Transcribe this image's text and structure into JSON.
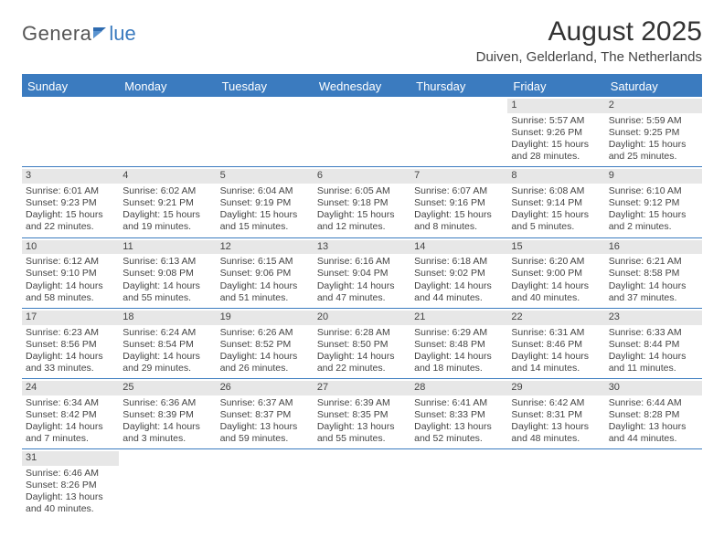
{
  "logo": {
    "part1": "Genera",
    "part2": "lue"
  },
  "title": "August 2025",
  "subtitle": "Duiven, Gelderland, The Netherlands",
  "colors": {
    "brand": "#3b7bbf",
    "header_bg": "#3b7bbf",
    "header_text": "#ffffff",
    "daynum_bg": "#e7e7e7",
    "row_border": "#3b7bbf",
    "text": "#444444",
    "background": "#ffffff"
  },
  "typography": {
    "title_fontsize": 30,
    "subtitle_fontsize": 15,
    "dow_fontsize": 13,
    "cell_fontsize": 10.5,
    "logo_fontsize": 22
  },
  "days_of_week": [
    "Sunday",
    "Monday",
    "Tuesday",
    "Wednesday",
    "Thursday",
    "Friday",
    "Saturday"
  ],
  "weeks": [
    [
      {
        "n": "",
        "lines": [
          "",
          "",
          "",
          ""
        ]
      },
      {
        "n": "",
        "lines": [
          "",
          "",
          "",
          ""
        ]
      },
      {
        "n": "",
        "lines": [
          "",
          "",
          "",
          ""
        ]
      },
      {
        "n": "",
        "lines": [
          "",
          "",
          "",
          ""
        ]
      },
      {
        "n": "",
        "lines": [
          "",
          "",
          "",
          ""
        ]
      },
      {
        "n": "1",
        "lines": [
          "Sunrise: 5:57 AM",
          "Sunset: 9:26 PM",
          "Daylight: 15 hours",
          "and 28 minutes."
        ]
      },
      {
        "n": "2",
        "lines": [
          "Sunrise: 5:59 AM",
          "Sunset: 9:25 PM",
          "Daylight: 15 hours",
          "and 25 minutes."
        ]
      }
    ],
    [
      {
        "n": "3",
        "lines": [
          "Sunrise: 6:01 AM",
          "Sunset: 9:23 PM",
          "Daylight: 15 hours",
          "and 22 minutes."
        ]
      },
      {
        "n": "4",
        "lines": [
          "Sunrise: 6:02 AM",
          "Sunset: 9:21 PM",
          "Daylight: 15 hours",
          "and 19 minutes."
        ]
      },
      {
        "n": "5",
        "lines": [
          "Sunrise: 6:04 AM",
          "Sunset: 9:19 PM",
          "Daylight: 15 hours",
          "and 15 minutes."
        ]
      },
      {
        "n": "6",
        "lines": [
          "Sunrise: 6:05 AM",
          "Sunset: 9:18 PM",
          "Daylight: 15 hours",
          "and 12 minutes."
        ]
      },
      {
        "n": "7",
        "lines": [
          "Sunrise: 6:07 AM",
          "Sunset: 9:16 PM",
          "Daylight: 15 hours",
          "and 8 minutes."
        ]
      },
      {
        "n": "8",
        "lines": [
          "Sunrise: 6:08 AM",
          "Sunset: 9:14 PM",
          "Daylight: 15 hours",
          "and 5 minutes."
        ]
      },
      {
        "n": "9",
        "lines": [
          "Sunrise: 6:10 AM",
          "Sunset: 9:12 PM",
          "Daylight: 15 hours",
          "and 2 minutes."
        ]
      }
    ],
    [
      {
        "n": "10",
        "lines": [
          "Sunrise: 6:12 AM",
          "Sunset: 9:10 PM",
          "Daylight: 14 hours",
          "and 58 minutes."
        ]
      },
      {
        "n": "11",
        "lines": [
          "Sunrise: 6:13 AM",
          "Sunset: 9:08 PM",
          "Daylight: 14 hours",
          "and 55 minutes."
        ]
      },
      {
        "n": "12",
        "lines": [
          "Sunrise: 6:15 AM",
          "Sunset: 9:06 PM",
          "Daylight: 14 hours",
          "and 51 minutes."
        ]
      },
      {
        "n": "13",
        "lines": [
          "Sunrise: 6:16 AM",
          "Sunset: 9:04 PM",
          "Daylight: 14 hours",
          "and 47 minutes."
        ]
      },
      {
        "n": "14",
        "lines": [
          "Sunrise: 6:18 AM",
          "Sunset: 9:02 PM",
          "Daylight: 14 hours",
          "and 44 minutes."
        ]
      },
      {
        "n": "15",
        "lines": [
          "Sunrise: 6:20 AM",
          "Sunset: 9:00 PM",
          "Daylight: 14 hours",
          "and 40 minutes."
        ]
      },
      {
        "n": "16",
        "lines": [
          "Sunrise: 6:21 AM",
          "Sunset: 8:58 PM",
          "Daylight: 14 hours",
          "and 37 minutes."
        ]
      }
    ],
    [
      {
        "n": "17",
        "lines": [
          "Sunrise: 6:23 AM",
          "Sunset: 8:56 PM",
          "Daylight: 14 hours",
          "and 33 minutes."
        ]
      },
      {
        "n": "18",
        "lines": [
          "Sunrise: 6:24 AM",
          "Sunset: 8:54 PM",
          "Daylight: 14 hours",
          "and 29 minutes."
        ]
      },
      {
        "n": "19",
        "lines": [
          "Sunrise: 6:26 AM",
          "Sunset: 8:52 PM",
          "Daylight: 14 hours",
          "and 26 minutes."
        ]
      },
      {
        "n": "20",
        "lines": [
          "Sunrise: 6:28 AM",
          "Sunset: 8:50 PM",
          "Daylight: 14 hours",
          "and 22 minutes."
        ]
      },
      {
        "n": "21",
        "lines": [
          "Sunrise: 6:29 AM",
          "Sunset: 8:48 PM",
          "Daylight: 14 hours",
          "and 18 minutes."
        ]
      },
      {
        "n": "22",
        "lines": [
          "Sunrise: 6:31 AM",
          "Sunset: 8:46 PM",
          "Daylight: 14 hours",
          "and 14 minutes."
        ]
      },
      {
        "n": "23",
        "lines": [
          "Sunrise: 6:33 AM",
          "Sunset: 8:44 PM",
          "Daylight: 14 hours",
          "and 11 minutes."
        ]
      }
    ],
    [
      {
        "n": "24",
        "lines": [
          "Sunrise: 6:34 AM",
          "Sunset: 8:42 PM",
          "Daylight: 14 hours",
          "and 7 minutes."
        ]
      },
      {
        "n": "25",
        "lines": [
          "Sunrise: 6:36 AM",
          "Sunset: 8:39 PM",
          "Daylight: 14 hours",
          "and 3 minutes."
        ]
      },
      {
        "n": "26",
        "lines": [
          "Sunrise: 6:37 AM",
          "Sunset: 8:37 PM",
          "Daylight: 13 hours",
          "and 59 minutes."
        ]
      },
      {
        "n": "27",
        "lines": [
          "Sunrise: 6:39 AM",
          "Sunset: 8:35 PM",
          "Daylight: 13 hours",
          "and 55 minutes."
        ]
      },
      {
        "n": "28",
        "lines": [
          "Sunrise: 6:41 AM",
          "Sunset: 8:33 PM",
          "Daylight: 13 hours",
          "and 52 minutes."
        ]
      },
      {
        "n": "29",
        "lines": [
          "Sunrise: 6:42 AM",
          "Sunset: 8:31 PM",
          "Daylight: 13 hours",
          "and 48 minutes."
        ]
      },
      {
        "n": "30",
        "lines": [
          "Sunrise: 6:44 AM",
          "Sunset: 8:28 PM",
          "Daylight: 13 hours",
          "and 44 minutes."
        ]
      }
    ],
    [
      {
        "n": "31",
        "lines": [
          "Sunrise: 6:46 AM",
          "Sunset: 8:26 PM",
          "Daylight: 13 hours",
          "and 40 minutes."
        ]
      },
      {
        "n": "",
        "lines": [
          "",
          "",
          "",
          ""
        ]
      },
      {
        "n": "",
        "lines": [
          "",
          "",
          "",
          ""
        ]
      },
      {
        "n": "",
        "lines": [
          "",
          "",
          "",
          ""
        ]
      },
      {
        "n": "",
        "lines": [
          "",
          "",
          "",
          ""
        ]
      },
      {
        "n": "",
        "lines": [
          "",
          "",
          "",
          ""
        ]
      },
      {
        "n": "",
        "lines": [
          "",
          "",
          "",
          ""
        ]
      }
    ]
  ]
}
